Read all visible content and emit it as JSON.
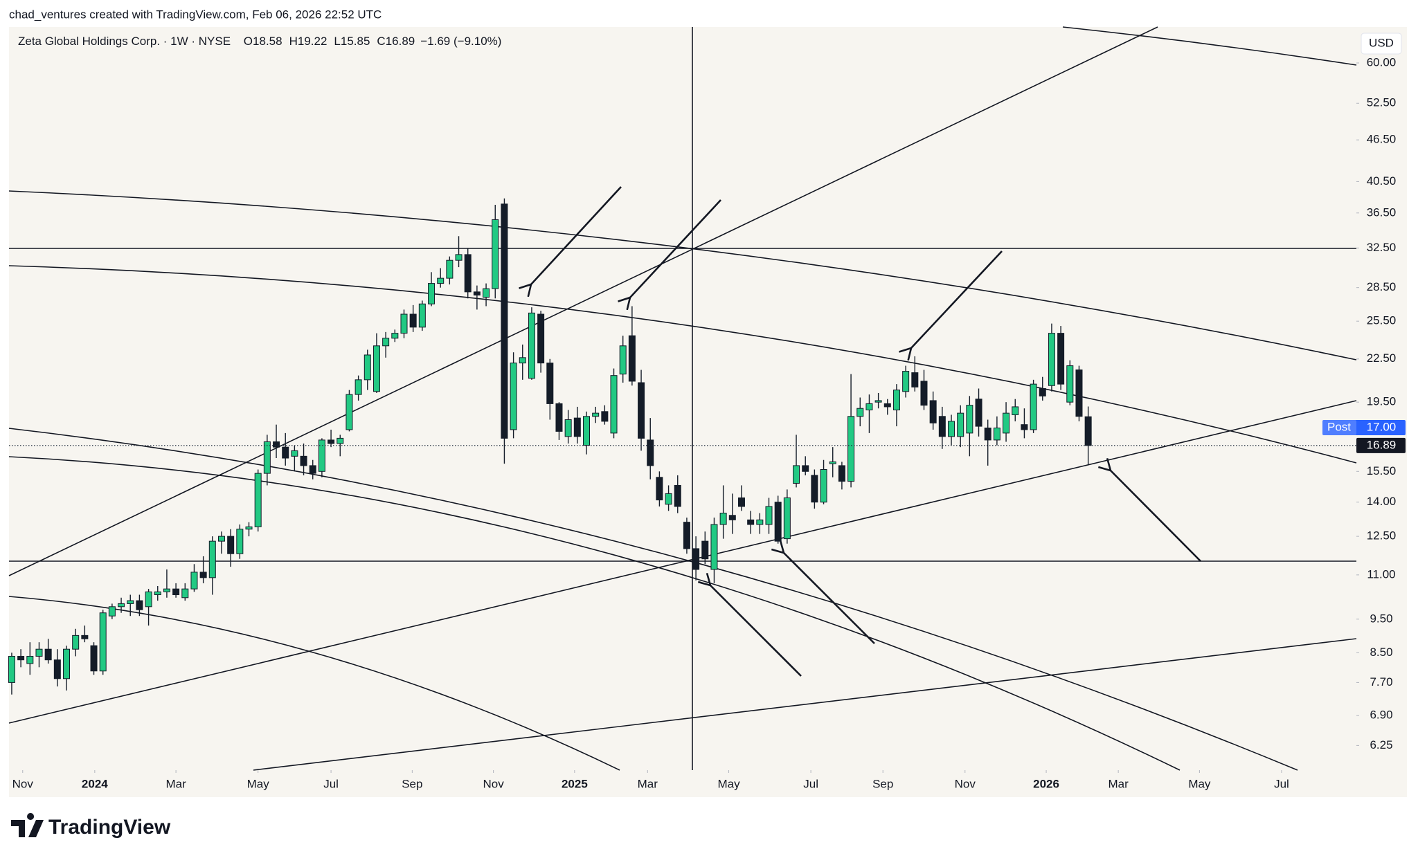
{
  "header": "chad_ventures created with TradingView.com, Feb 06, 2026 22:52 UTC",
  "brand": "TradingView",
  "chart_data": {
    "type": "candlestick",
    "title": "Zeta Global Holdings Corp. · 1W · NYSE",
    "ohlc_prefixes": [
      "O",
      "H",
      "L",
      "C"
    ],
    "change_label": "−1.69 (−9.10%)",
    "currency": "USD",
    "log_scale": true,
    "grid": false,
    "up_color": "#22c983",
    "down_color": "#141c28",
    "open": [
      7.7,
      8.4,
      8.2,
      8.4,
      8.6,
      8.3,
      7.8,
      8.6,
      9.0,
      8.7,
      8.0,
      9.6,
      9.9,
      10.0,
      10.1,
      9.9,
      10.3,
      10.4,
      10.5,
      10.2,
      10.5,
      11.1,
      10.9,
      12.3,
      12.5,
      11.8,
      12.8,
      12.9,
      15.4,
      17.1,
      16.8,
      16.3,
      16.3,
      15.8,
      15.5,
      17.2,
      17.0,
      17.8,
      20.0,
      21.0,
      20.2,
      23.5,
      24.1,
      24.5,
      26.1,
      25.0,
      27.0,
      28.9,
      29.4,
      31.2,
      31.8,
      28.1,
      27.6,
      28.4,
      37.6,
      17.8,
      22.2,
      21.1,
      26.1,
      22.2,
      19.4,
      17.4,
      18.5,
      16.9,
      18.6,
      18.9,
      17.6,
      21.4,
      24.3,
      20.8,
      17.2,
      15.2,
      13.9,
      14.8,
      13.1,
      12.0,
      12.3,
      11.2,
      13.0,
      13.4,
      14.2,
      13.2,
      13.0,
      13.0,
      14.0,
      12.4,
      14.9,
      15.8,
      15.3,
      14.0,
      15.9,
      15.8,
      15.0,
      18.6,
      19.0,
      19.5,
      19.4,
      19.0,
      20.2,
      21.5,
      20.9,
      19.6,
      18.6,
      17.4,
      17.4,
      17.6,
      19.7,
      17.9,
      17.2,
      17.6,
      18.7,
      18.1,
      17.8,
      20.4,
      20.6,
      24.5,
      19.5,
      21.7,
      18.58
    ],
    "high": [
      8.5,
      8.6,
      8.8,
      8.8,
      8.9,
      8.6,
      8.7,
      9.2,
      9.3,
      8.8,
      9.8,
      10.0,
      10.2,
      10.3,
      10.3,
      10.5,
      10.6,
      11.2,
      10.7,
      10.7,
      11.4,
      11.7,
      12.5,
      12.7,
      12.8,
      13.0,
      13.1,
      15.6,
      17.5,
      18.1,
      17.6,
      16.9,
      17.0,
      16.1,
      17.3,
      17.8,
      17.5,
      20.3,
      21.3,
      23.2,
      24.5,
      24.6,
      24.8,
      26.5,
      26.9,
      27.3,
      30.0,
      30.4,
      31.6,
      33.8,
      32.5,
      28.7,
      28.9,
      37.5,
      38.3,
      23.0,
      23.6,
      26.7,
      26.4,
      22.5,
      19.5,
      19.0,
      19.2,
      18.9,
      19.2,
      19.3,
      21.8,
      24.3,
      26.8,
      21.7,
      18.5,
      15.5,
      14.8,
      15.3,
      13.3,
      12.5,
      12.7,
      13.3,
      14.8,
      14.4,
      14.8,
      13.6,
      13.5,
      14.2,
      14.3,
      14.6,
      17.5,
      16.3,
      15.6,
      16.1,
      16.8,
      16.0,
      21.4,
      19.8,
      20.0,
      20.1,
      19.7,
      20.7,
      22.0,
      22.7,
      21.7,
      20.2,
      19.2,
      18.7,
      19.3,
      19.9,
      20.4,
      18.4,
      18.6,
      19.5,
      19.7,
      19.1,
      21.0,
      21.2,
      25.3,
      25.1,
      22.4,
      22.0,
      19.22
    ],
    "low": [
      7.4,
      8.1,
      7.9,
      8.1,
      8.2,
      7.6,
      7.5,
      8.4,
      8.8,
      7.9,
      7.9,
      9.5,
      9.7,
      9.6,
      9.6,
      9.3,
      10.1,
      10.2,
      10.2,
      10.1,
      10.4,
      10.7,
      10.3,
      11.8,
      11.3,
      11.6,
      12.5,
      12.7,
      14.8,
      16.2,
      15.8,
      15.5,
      15.3,
      15.1,
      15.2,
      16.8,
      16.3,
      17.7,
      19.6,
      20.3,
      20.1,
      22.6,
      23.8,
      24.1,
      24.6,
      24.7,
      26.8,
      28.5,
      28.8,
      30.5,
      27.5,
      26.5,
      26.8,
      27.5,
      15.9,
      17.3,
      21.0,
      21.0,
      21.5,
      18.4,
      17.2,
      17.0,
      17.0,
      16.4,
      18.2,
      18.1,
      17.3,
      20.8,
      20.6,
      16.6,
      15.1,
      13.8,
      13.6,
      13.5,
      11.8,
      10.8,
      11.4,
      10.7,
      12.4,
      12.6,
      13.6,
      12.6,
      12.6,
      12.6,
      12.2,
      12.2,
      14.7,
      15.3,
      13.7,
      13.9,
      15.2,
      14.6,
      14.7,
      18.0,
      17.6,
      19.1,
      18.7,
      18.0,
      19.8,
      20.2,
      19.0,
      17.8,
      16.7,
      16.9,
      16.8,
      16.3,
      17.4,
      15.8,
      16.9,
      17.1,
      18.3,
      17.3,
      17.6,
      19.6,
      20.2,
      20.3,
      19.3,
      18.3,
      15.85
    ],
    "close": [
      8.4,
      8.3,
      8.4,
      8.6,
      8.3,
      7.8,
      8.6,
      9.0,
      8.9,
      8.0,
      9.7,
      9.9,
      10.0,
      10.1,
      9.8,
      10.4,
      10.4,
      10.5,
      10.3,
      10.5,
      11.1,
      10.9,
      12.3,
      12.5,
      11.8,
      12.8,
      12.9,
      15.4,
      17.1,
      16.8,
      16.2,
      16.6,
      15.8,
      15.4,
      17.2,
      17.0,
      17.3,
      20.0,
      21.0,
      22.8,
      23.5,
      24.1,
      24.5,
      26.1,
      25.0,
      27.0,
      28.9,
      29.4,
      31.2,
      31.8,
      28.1,
      27.8,
      28.4,
      35.7,
      17.3,
      22.2,
      22.6,
      26.2,
      22.2,
      19.4,
      17.7,
      18.4,
      17.4,
      18.6,
      18.8,
      18.3,
      21.3,
      23.5,
      20.9,
      17.3,
      15.8,
      14.1,
      14.4,
      13.8,
      12.0,
      11.2,
      11.6,
      13.0,
      13.5,
      13.2,
      13.8,
      13.0,
      13.2,
      13.8,
      12.3,
      14.2,
      15.8,
      15.5,
      14.0,
      15.6,
      16.0,
      15.0,
      18.6,
      19.1,
      19.4,
      19.6,
      19.2,
      20.3,
      21.6,
      20.5,
      19.3,
      18.2,
      17.4,
      18.3,
      18.8,
      19.3,
      18.0,
      17.2,
      17.9,
      18.8,
      19.2,
      17.8,
      20.7,
      19.9,
      24.5,
      20.7,
      22.0,
      18.6,
      16.89
    ],
    "xlim": [
      -0.3,
      147.4
    ],
    "xticks": [
      {
        "value": 1.2,
        "label": "Nov"
      },
      {
        "value": 9.1,
        "label": "2024"
      },
      {
        "value": 18.0,
        "label": "Mar"
      },
      {
        "value": 27.0,
        "label": "May"
      },
      {
        "value": 35.0,
        "label": "Jul"
      },
      {
        "value": 43.9,
        "label": "Sep"
      },
      {
        "value": 52.8,
        "label": "Nov"
      },
      {
        "value": 61.7,
        "label": "2025"
      },
      {
        "value": 69.7,
        "label": "Mar"
      },
      {
        "value": 78.6,
        "label": "May"
      },
      {
        "value": 87.6,
        "label": "Jul"
      },
      {
        "value": 95.5,
        "label": "Sep"
      },
      {
        "value": 104.5,
        "label": "Nov"
      },
      {
        "value": 113.4,
        "label": "2026"
      },
      {
        "value": 121.3,
        "label": "Mar"
      },
      {
        "value": 130.2,
        "label": "May"
      },
      {
        "value": 139.2,
        "label": "Jul"
      }
    ],
    "ylim": [
      5.76,
      67.6
    ],
    "yticks": [
      {
        "value": 60,
        "label": "60.00"
      },
      {
        "value": 52.5,
        "label": "52.50"
      },
      {
        "value": 46.5,
        "label": "46.50"
      },
      {
        "value": 40.5,
        "label": "40.50"
      },
      {
        "value": 36.5,
        "label": "36.50"
      },
      {
        "value": 32.5,
        "label": "32.50"
      },
      {
        "value": 28.5,
        "label": "28.50"
      },
      {
        "value": 25.5,
        "label": "25.50"
      },
      {
        "value": 22.5,
        "label": "22.50"
      },
      {
        "value": 19.5,
        "label": "19.50"
      },
      {
        "value": 15.5,
        "label": "15.50"
      },
      {
        "value": 14,
        "label": "14.00"
      },
      {
        "value": 12.5,
        "label": "12.50"
      },
      {
        "value": 11,
        "label": "11.00"
      },
      {
        "value": 9.5,
        "label": "9.50"
      },
      {
        "value": 8.5,
        "label": "8.50"
      },
      {
        "value": 7.7,
        "label": "7.70"
      },
      {
        "value": 6.9,
        "label": "6.90"
      },
      {
        "value": 6.25,
        "label": "6.25"
      }
    ],
    "post_label": {
      "label": "Post",
      "value": 17.0,
      "value_label": "17.00",
      "color": "#2962ff"
    }
  }
}
